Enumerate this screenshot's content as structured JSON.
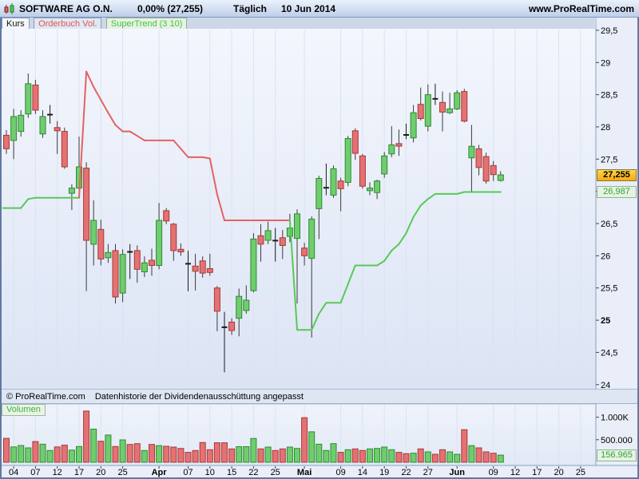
{
  "header": {
    "title": "SOFTWARE AG O.N.",
    "change": "0,00% (27,255)",
    "period": "Täglich",
    "date": "10 Jun 2014",
    "site": "www.ProRealTime.com",
    "icon": "candlestick-logo-icon"
  },
  "tabs": {
    "kurs": "Kurs",
    "orderbuch": "Orderbuch Vol.",
    "supertrend": "SuperTrend (3 10)"
  },
  "status_bar": {
    "copyright": "© ProRealTime.com",
    "notice": "Datenhistorie der Dividendenausschüttung angepasst"
  },
  "volume_tab": "Volumen",
  "price_axis": {
    "last_price_label": "27,255",
    "supertrend_label": "26,987"
  },
  "volume_axis": {
    "last_volume_label": "156.965"
  },
  "colors": {
    "candle_up_fill": "#6fcd6f",
    "candle_up_stroke": "#2e8b2e",
    "candle_down_fill": "#e47272",
    "candle_down_stroke": "#a83838",
    "supertrend_up": "#57c957",
    "supertrend_down": "#e4625f",
    "grid": "#dce2f1",
    "axis_line": "#8aa0c0",
    "price_badge_bg": "#f7a90c",
    "green_badge_text": "#2fa32f"
  },
  "chart_data": {
    "type": "candlestick+volume",
    "symbol": "SOFTWARE AG O.N.",
    "timeframe": "Täglich",
    "last_date": "10 Jun 2014",
    "last_close": 27.255,
    "change_pct": 0.0,
    "indicator": "SuperTrend (3 10)",
    "supertrend_final": 26.987,
    "last_volume": 156965,
    "ylim": [
      23.85,
      29.65
    ],
    "grid": "vertical-only",
    "legend_position": "tabs-top-left",
    "y_ticks": [
      {
        "l": "29,5",
        "v": 29.5
      },
      {
        "l": "29",
        "v": 29
      },
      {
        "l": "28,5",
        "v": 28.5
      },
      {
        "l": "28",
        "v": 28
      },
      {
        "l": "27,5",
        "v": 27.5
      },
      {
        "l": "27",
        "v": 27
      },
      {
        "l": "26,5",
        "v": 26.5
      },
      {
        "l": "26",
        "v": 26
      },
      {
        "l": "25,5",
        "v": 25.5
      },
      {
        "l": "25",
        "v": 25,
        "b": 1
      },
      {
        "l": "24,5",
        "v": 24.5
      },
      {
        "l": "24",
        "v": 24
      }
    ],
    "vol_ticks": [
      {
        "l": "1.000K",
        "v": 1000
      },
      {
        "l": "500.000",
        "v": 500
      }
    ],
    "x_ticks": [
      {
        "l": "04",
        "i": 1
      },
      {
        "l": "07",
        "i": 4
      },
      {
        "l": "12",
        "i": 7
      },
      {
        "l": "17",
        "i": 10
      },
      {
        "l": "20",
        "i": 13
      },
      {
        "l": "25",
        "i": 16
      },
      {
        "l": "Apr",
        "i": 21,
        "b": 1
      },
      {
        "l": "07",
        "i": 25
      },
      {
        "l": "10",
        "i": 28
      },
      {
        "l": "15",
        "i": 31
      },
      {
        "l": "22",
        "i": 34
      },
      {
        "l": "25",
        "i": 37
      },
      {
        "l": "Mai",
        "i": 41,
        "b": 1
      },
      {
        "l": "09",
        "i": 46
      },
      {
        "l": "14",
        "i": 49
      },
      {
        "l": "19",
        "i": 52
      },
      {
        "l": "22",
        "i": 55
      },
      {
        "l": "27",
        "i": 58
      },
      {
        "l": "Jun",
        "i": 62,
        "b": 1
      },
      {
        "l": "09",
        "i": 67
      },
      {
        "l": "12",
        "i": 70
      },
      {
        "l": "17",
        "i": 73
      },
      {
        "l": "20",
        "i": 76
      },
      {
        "l": "25",
        "i": 79
      }
    ],
    "candles_fields": [
      "date",
      "open",
      "high",
      "low",
      "close",
      "volume_thousands",
      "supertrend",
      "trend"
    ],
    "candles": [
      [
        "2014-03-03",
        27.87,
        27.95,
        27.58,
        27.66,
        530,
        26.74,
        "g"
      ],
      [
        "2014-03-04",
        27.79,
        28.28,
        27.5,
        28.16,
        340,
        26.74,
        "g"
      ],
      [
        "2014-03-05",
        27.93,
        28.26,
        27.85,
        28.18,
        370,
        26.74,
        "g"
      ],
      [
        "2014-03-06",
        28.2,
        28.83,
        28.14,
        28.67,
        320,
        26.88,
        "g"
      ],
      [
        "2014-03-07",
        28.65,
        28.73,
        28.2,
        28.26,
        460,
        26.9,
        "g"
      ],
      [
        "2014-03-10",
        27.89,
        28.26,
        27.83,
        28.16,
        400,
        26.9,
        "g"
      ],
      [
        "2014-03-11",
        28.18,
        28.34,
        28.05,
        28.2,
        260,
        26.9,
        "g"
      ],
      [
        "2014-03-12",
        27.99,
        28.09,
        27.58,
        27.94,
        340,
        26.9,
        "g"
      ],
      [
        "2014-03-13",
        27.93,
        27.99,
        27.35,
        27.38,
        380,
        26.9,
        "g"
      ],
      [
        "2014-03-14",
        26.97,
        27.11,
        26.71,
        27.05,
        270,
        26.9,
        "g"
      ],
      [
        "2014-03-17",
        27.05,
        27.85,
        26.9,
        27.38,
        350,
        26.9,
        "g"
      ],
      [
        "2014-03-18",
        27.36,
        27.45,
        25.45,
        26.24,
        1137,
        28.86,
        "r"
      ],
      [
        "2014-03-19",
        26.18,
        26.86,
        25.85,
        26.55,
        735,
        28.62,
        "r"
      ],
      [
        "2014-03-20",
        26.41,
        26.56,
        25.85,
        25.95,
        467,
        28.42,
        "r"
      ],
      [
        "2014-03-21",
        25.97,
        26.18,
        25.89,
        26.05,
        604,
        28.22,
        "r"
      ],
      [
        "2014-03-24",
        26.08,
        26.18,
        25.26,
        25.36,
        350,
        28.03,
        "r"
      ],
      [
        "2014-03-25",
        25.42,
        26.1,
        25.28,
        26.02,
        497,
        27.93,
        "r"
      ],
      [
        "2014-03-26",
        26.07,
        26.18,
        25.64,
        26.05,
        396,
        27.93,
        "r"
      ],
      [
        "2014-03-27",
        26.08,
        26.16,
        25.58,
        25.79,
        414,
        27.86,
        "r"
      ],
      [
        "2014-03-28",
        25.75,
        25.99,
        25.67,
        25.89,
        261,
        27.79,
        "r"
      ],
      [
        "2014-03-31",
        25.93,
        26.11,
        25.69,
        25.85,
        396,
        27.79,
        "r"
      ],
      [
        "2014-04-01",
        25.85,
        26.82,
        25.79,
        26.55,
        368,
        27.79,
        "r"
      ],
      [
        "2014-04-02",
        26.7,
        26.74,
        26.49,
        26.54,
        355,
        27.79,
        "r"
      ],
      [
        "2014-04-03",
        26.49,
        26.51,
        25.92,
        26.08,
        337,
        27.79,
        "r"
      ],
      [
        "2014-04-04",
        26.1,
        26.19,
        26.0,
        26.06,
        307,
        27.66,
        "r"
      ],
      [
        "2014-04-07",
        25.88,
        26.08,
        25.45,
        25.87,
        219,
        27.53,
        "r"
      ],
      [
        "2014-04-08",
        25.84,
        26.03,
        25.46,
        25.76,
        261,
        27.53,
        "r"
      ],
      [
        "2014-04-09",
        25.92,
        25.99,
        25.66,
        25.73,
        438,
        27.53,
        "r"
      ],
      [
        "2014-04-10",
        25.8,
        26.03,
        25.69,
        25.74,
        278,
        27.51,
        "r"
      ],
      [
        "2014-04-11",
        25.5,
        25.53,
        24.83,
        25.14,
        432,
        26.95,
        "r"
      ],
      [
        "2014-04-14",
        24.9,
        25.13,
        24.19,
        24.88,
        432,
        26.55,
        "r"
      ],
      [
        "2014-04-15",
        24.97,
        25.03,
        24.77,
        24.84,
        296,
        26.55,
        "r"
      ],
      [
        "2014-04-16",
        25.03,
        25.49,
        24.75,
        25.37,
        345,
        26.55,
        "r"
      ],
      [
        "2014-04-17",
        25.15,
        25.54,
        25.1,
        25.31,
        345,
        26.55,
        "r"
      ],
      [
        "2014-04-22",
        25.46,
        26.35,
        25.43,
        26.26,
        528,
        26.55,
        "r"
      ],
      [
        "2014-04-23",
        26.31,
        26.49,
        25.91,
        26.18,
        296,
        26.55,
        "r"
      ],
      [
        "2014-04-24",
        26.24,
        26.53,
        26.18,
        26.39,
        337,
        26.55,
        "r"
      ],
      [
        "2014-04-25",
        26.24,
        26.43,
        25.91,
        26.23,
        261,
        26.55,
        "r"
      ],
      [
        "2014-04-28",
        26.28,
        26.4,
        25.95,
        26.16,
        296,
        26.55,
        "r"
      ],
      [
        "2014-04-29",
        26.3,
        26.65,
        26.21,
        26.43,
        337,
        26.55,
        "r"
      ],
      [
        "2014-04-30",
        26.27,
        26.72,
        25.26,
        26.65,
        307,
        24.85,
        "g"
      ],
      [
        "2014-05-02",
        26.12,
        26.2,
        25.85,
        26.0,
        989,
        24.85,
        "g"
      ],
      [
        "2014-05-05",
        25.96,
        26.61,
        24.73,
        26.57,
        675,
        24.85,
        "g"
      ],
      [
        "2014-05-06",
        26.73,
        27.24,
        26.26,
        27.2,
        400,
        25.1,
        "g"
      ],
      [
        "2014-05-07",
        27.05,
        27.43,
        26.94,
        27.06,
        261,
        25.27,
        "g"
      ],
      [
        "2014-05-08",
        26.94,
        27.4,
        26.9,
        27.35,
        414,
        25.27,
        "g"
      ],
      [
        "2014-05-09",
        27.16,
        27.21,
        26.69,
        27.04,
        219,
        25.27,
        "g"
      ],
      [
        "2014-05-12",
        27.14,
        27.86,
        27.08,
        27.82,
        278,
        25.56,
        "g"
      ],
      [
        "2014-05-13",
        27.94,
        27.98,
        27.49,
        27.59,
        296,
        25.85,
        "g"
      ],
      [
        "2014-05-14",
        27.55,
        27.58,
        27.04,
        27.08,
        261,
        25.85,
        "g"
      ],
      [
        "2014-05-15",
        27.01,
        27.14,
        26.94,
        27.05,
        296,
        25.85,
        "g"
      ],
      [
        "2014-05-16",
        26.98,
        27.18,
        26.88,
        27.16,
        307,
        25.85,
        "g"
      ],
      [
        "2014-05-19",
        27.27,
        27.61,
        27.21,
        27.55,
        337,
        25.92,
        "g"
      ],
      [
        "2014-05-20",
        27.58,
        28.01,
        27.53,
        27.72,
        278,
        26.08,
        "g"
      ],
      [
        "2014-05-21",
        27.74,
        27.96,
        27.55,
        27.7,
        219,
        26.18,
        "g"
      ],
      [
        "2014-05-22",
        27.88,
        28.05,
        27.81,
        27.87,
        190,
        26.35,
        "g"
      ],
      [
        "2014-05-23",
        27.83,
        28.34,
        27.76,
        28.22,
        200,
        26.6,
        "g"
      ],
      [
        "2014-05-26",
        28.35,
        28.61,
        28.1,
        28.13,
        296,
        26.78,
        "g"
      ],
      [
        "2014-05-27",
        28.01,
        28.66,
        27.93,
        28.5,
        231,
        26.88,
        "g"
      ],
      [
        "2014-05-28",
        28.44,
        28.67,
        28.34,
        28.43,
        178,
        26.96,
        "g"
      ],
      [
        "2014-05-29",
        28.38,
        28.55,
        27.93,
        28.23,
        278,
        26.96,
        "g"
      ],
      [
        "2014-05-30",
        28.22,
        28.53,
        28.2,
        28.28,
        231,
        26.96,
        "g"
      ],
      [
        "2014-06-02",
        28.28,
        28.57,
        28.26,
        28.53,
        178,
        26.96,
        "g"
      ],
      [
        "2014-06-03",
        28.55,
        28.59,
        28.07,
        28.09,
        723,
        26.99,
        "g"
      ],
      [
        "2014-06-04",
        27.52,
        28.03,
        26.99,
        27.7,
        368,
        26.99,
        "g"
      ],
      [
        "2014-06-05",
        27.66,
        27.72,
        27.25,
        27.37,
        320,
        26.99,
        "g"
      ],
      [
        "2014-06-06",
        27.54,
        27.6,
        27.12,
        27.16,
        230,
        26.99,
        "g"
      ],
      [
        "2014-06-09",
        27.4,
        27.47,
        27.16,
        27.26,
        201,
        26.99,
        "g"
      ],
      [
        "2014-06-10",
        27.17,
        27.31,
        27.15,
        27.255,
        156.965,
        26.99,
        "g"
      ]
    ]
  }
}
